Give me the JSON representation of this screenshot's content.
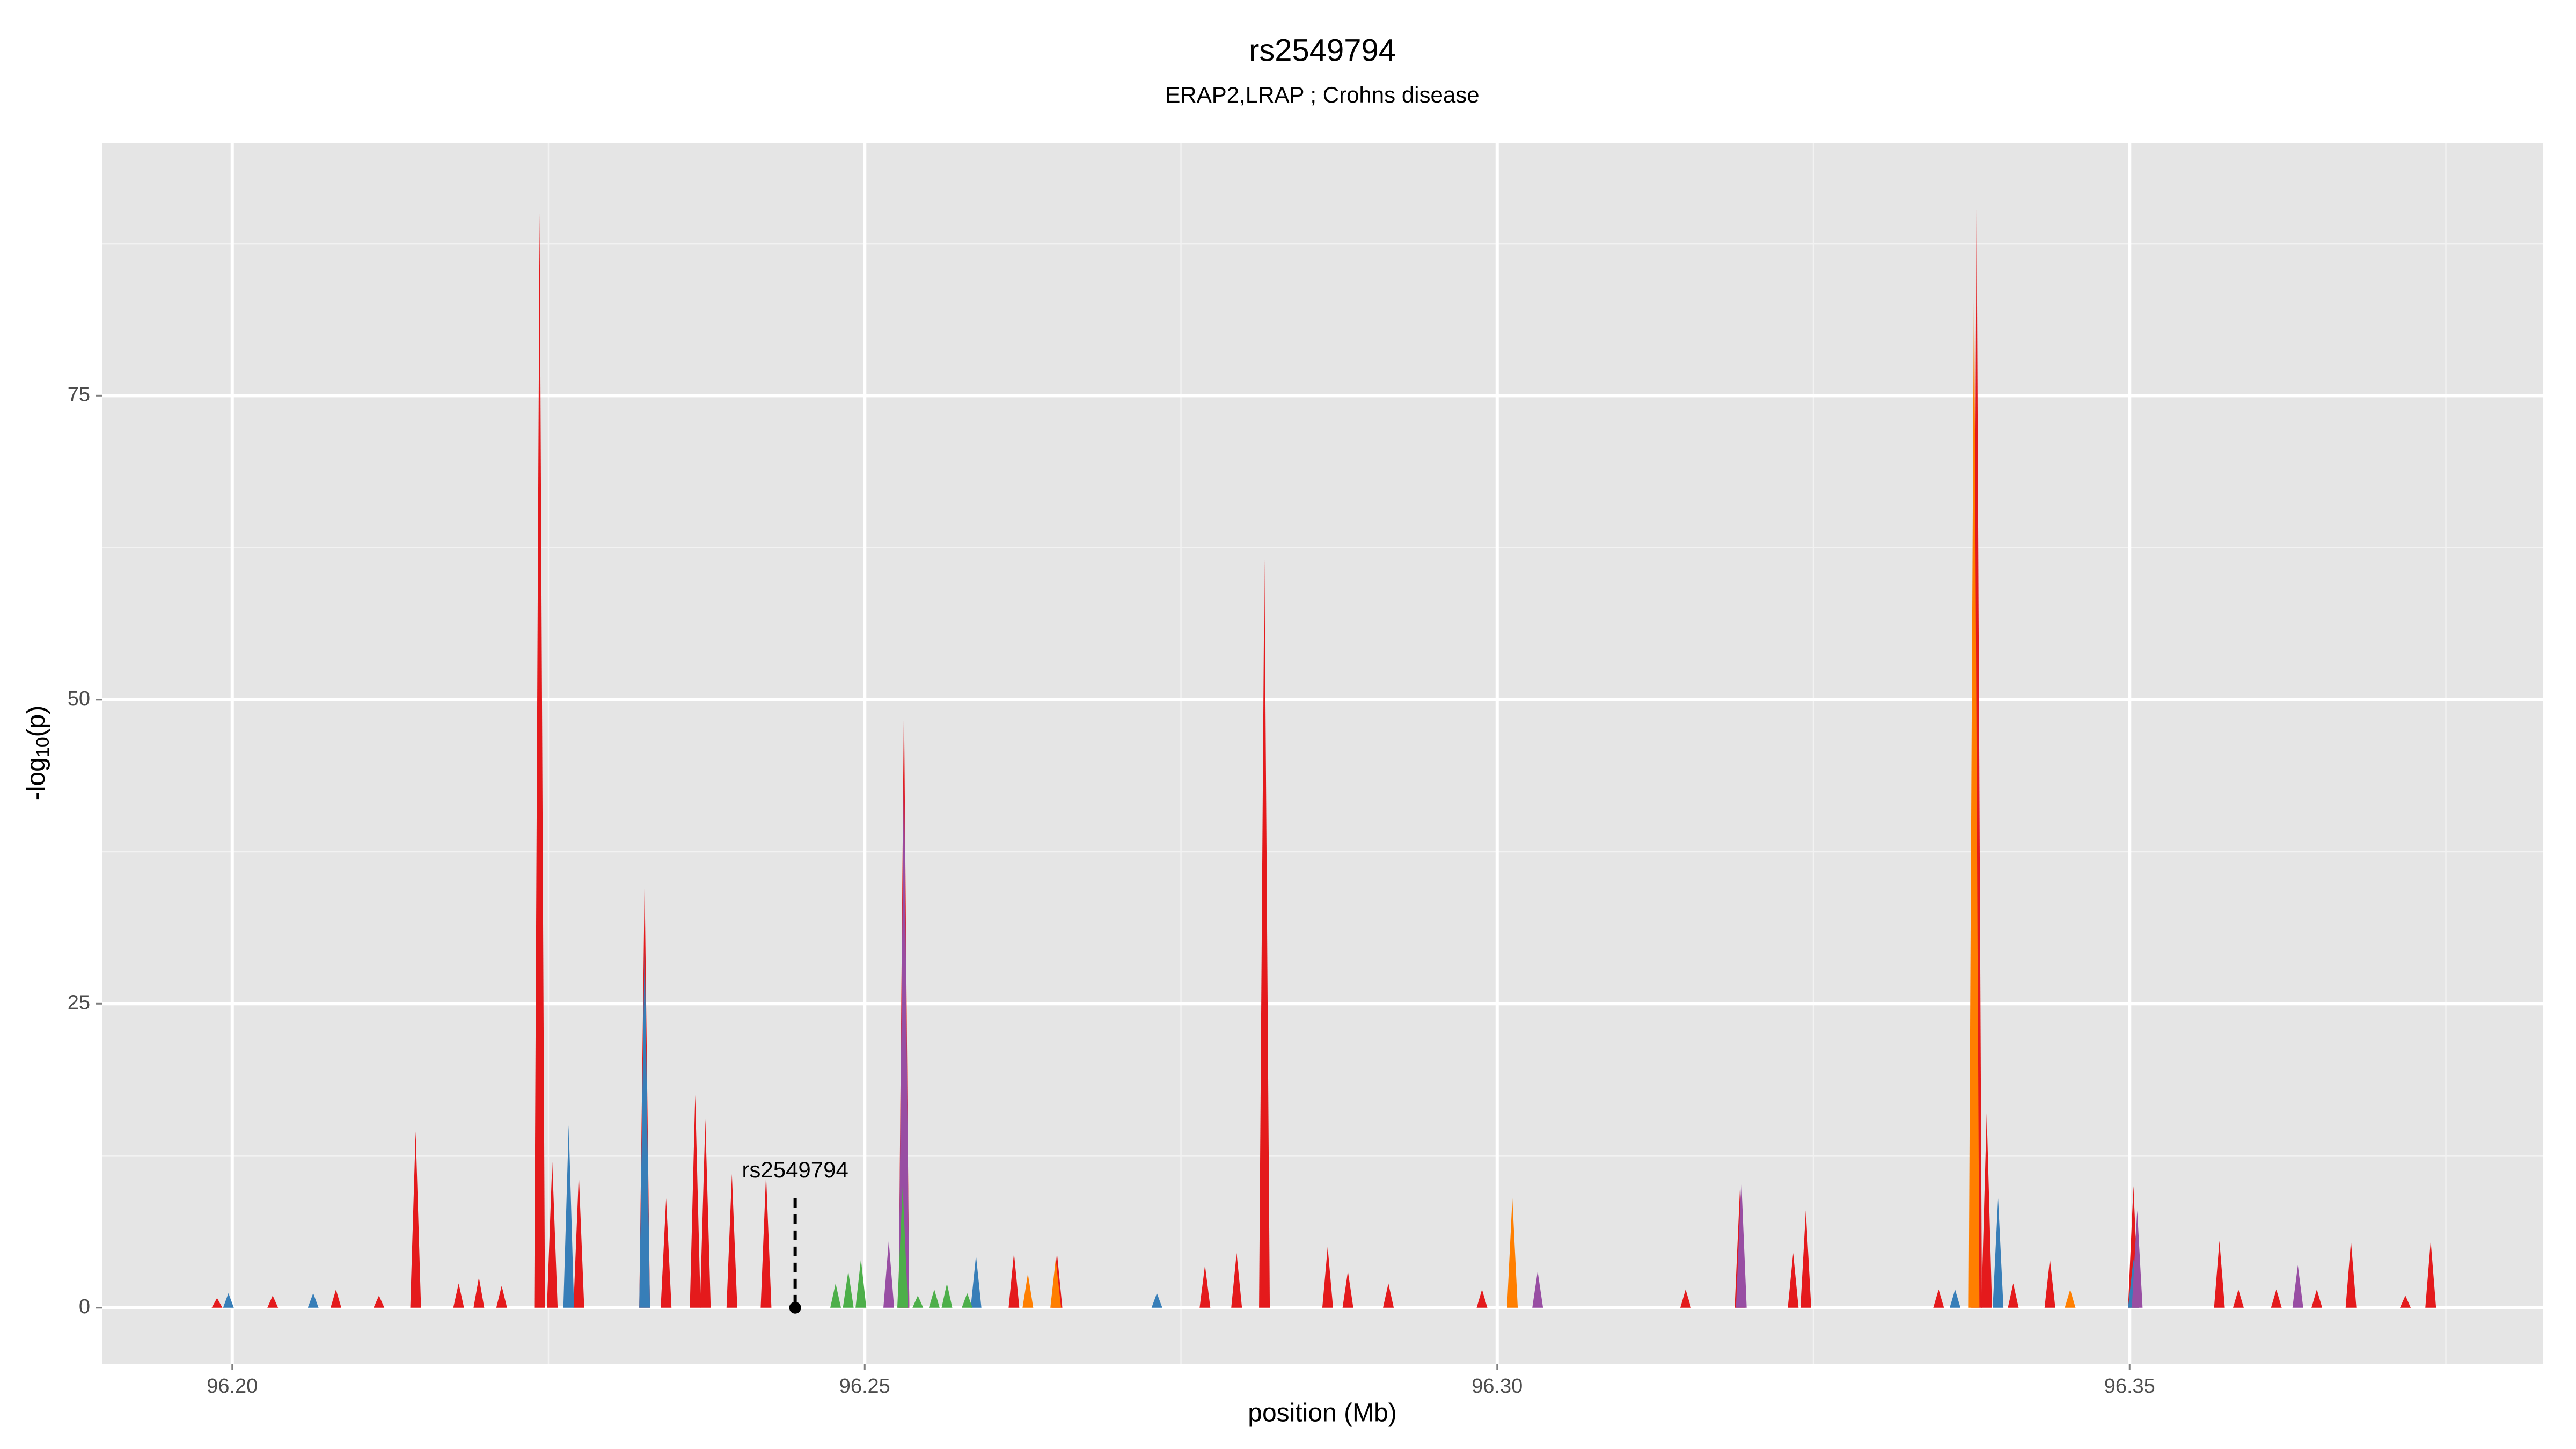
{
  "chart_data": {
    "type": "spike-area",
    "title": "rs2549794",
    "subtitle": "ERAP2,LRAP ; Crohns disease",
    "x_label": "position (Mb)",
    "y_label": {
      "prefix": "-log",
      "subscript": "10",
      "suffix": "(p)"
    },
    "xlim": [
      96.1897,
      96.3827
    ],
    "ylim": [
      -4.6,
      95.8
    ],
    "xticks": [
      {
        "value": 96.2,
        "label": "96.20"
      },
      {
        "value": 96.25,
        "label": "96.25"
      },
      {
        "value": 96.3,
        "label": "96.30"
      },
      {
        "value": 96.35,
        "label": "96.35"
      }
    ],
    "yticks": [
      0,
      25,
      50,
      75
    ],
    "x_minor_grid": [
      96.225,
      96.275,
      96.325,
      96.375
    ],
    "y_minor_grid": [
      12.5,
      37.5,
      62.5,
      87.5
    ],
    "grid": true,
    "series": [
      {
        "name": "red",
        "color": "#e41a1c",
        "x": [
          96.1988,
          96.2032,
          96.2082,
          96.2116,
          96.2145,
          96.2179,
          96.2195,
          96.2213,
          96.2243,
          96.2253,
          96.2274,
          96.2326,
          96.2343,
          96.2366,
          96.2374,
          96.2395,
          96.2422,
          96.2531,
          96.2618,
          96.2652,
          96.2769,
          96.2794,
          96.2816,
          96.2866,
          96.2882,
          96.2914,
          96.2988,
          96.3149,
          96.3192,
          96.3234,
          96.3244,
          96.3349,
          96.3379,
          96.3387,
          96.3408,
          96.3437,
          96.3503,
          96.3571,
          96.3586,
          96.3616,
          96.3648,
          96.3675,
          96.3718,
          96.3738
        ],
        "values": [
          0.8,
          1,
          1.5,
          1,
          14.5,
          2,
          2.5,
          1.8,
          90,
          12,
          11,
          35,
          9,
          17.5,
          15.5,
          11,
          11,
          50,
          4.5,
          4.5,
          3.5,
          4.5,
          61.5,
          5,
          3,
          2,
          1.5,
          1.5,
          10,
          4.5,
          8,
          1.5,
          91,
          16,
          2,
          4,
          10,
          5.5,
          1.5,
          1.5,
          1.5,
          5.5,
          1,
          5.5
        ]
      },
      {
        "name": "orange",
        "color": "#ff7f00",
        "x": [
          96.2629,
          96.2651,
          96.3012,
          96.3377,
          96.3453
        ],
        "values": [
          2.8,
          4,
          9,
          86,
          1.5
        ]
      },
      {
        "name": "blue",
        "color": "#377eb8",
        "x": [
          96.1997,
          96.2064,
          96.2266,
          96.2326,
          96.2588,
          96.2731,
          96.3362,
          96.3396,
          96.3503
        ],
        "values": [
          1.2,
          1.2,
          15,
          30,
          4.3,
          1.2,
          1.5,
          9,
          4
        ]
      },
      {
        "name": "purple",
        "color": "#984ea3",
        "x": [
          96.2519,
          96.2531,
          96.3032,
          96.3193,
          96.3506,
          96.3633
        ],
        "values": [
          5.5,
          45,
          3,
          10.5,
          8,
          3.5
        ]
      },
      {
        "name": "green",
        "color": "#4daf4a",
        "x": [
          96.2477,
          96.2487,
          96.2497,
          96.253,
          96.2542,
          96.2555,
          96.2565,
          96.2581
        ],
        "values": [
          2,
          3,
          4,
          10,
          1,
          1.5,
          2,
          1.2
        ]
      }
    ],
    "annotation": {
      "label": "rs2549794",
      "x": 96.2445,
      "y": 0,
      "line_top": 9
    }
  }
}
